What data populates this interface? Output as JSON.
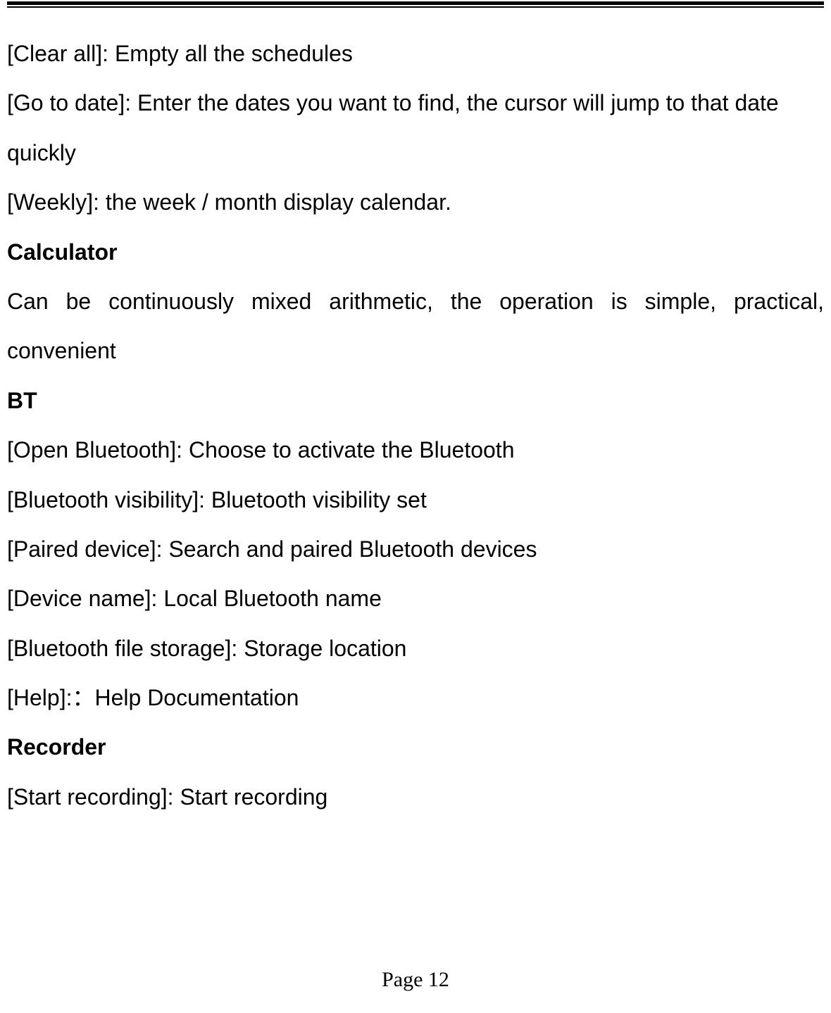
{
  "lines": {
    "clear_all": "[Clear all]: Empty all the schedules",
    "go_to_date": "[Go to date]: Enter the dates you want to find, the cursor will jump to that date quickly",
    "weekly": "[Weekly]: the week / month display calendar.",
    "calculator_heading": "Calculator",
    "calculator_desc": "Can be continuously mixed arithmetic, the operation is simple, practical, convenient",
    "bt_heading": "BT",
    "open_bluetooth": "[Open Bluetooth]: Choose to activate the Bluetooth",
    "bluetooth_visibility": "[Bluetooth visibility]: Bluetooth visibility set",
    "paired_device": "[Paired device]: Search and paired Bluetooth devices",
    "device_name": "[Device name]: Local Bluetooth name",
    "bluetooth_storage": "[Bluetooth file storage]: Storage location",
    "help": "[Help]:：Help Documentation",
    "recorder_heading": "Recorder",
    "start_recording": "[Start recording]: Start recording"
  },
  "page_number": "Page 12",
  "styling": {
    "body_font_size": 32,
    "heading_font_weight": "bold",
    "text_color": "#000000",
    "background_color": "#ffffff",
    "page_number_font": "Times New Roman",
    "line_height": 2.2,
    "border_top_thick": 5,
    "border_top_thin": 2
  }
}
